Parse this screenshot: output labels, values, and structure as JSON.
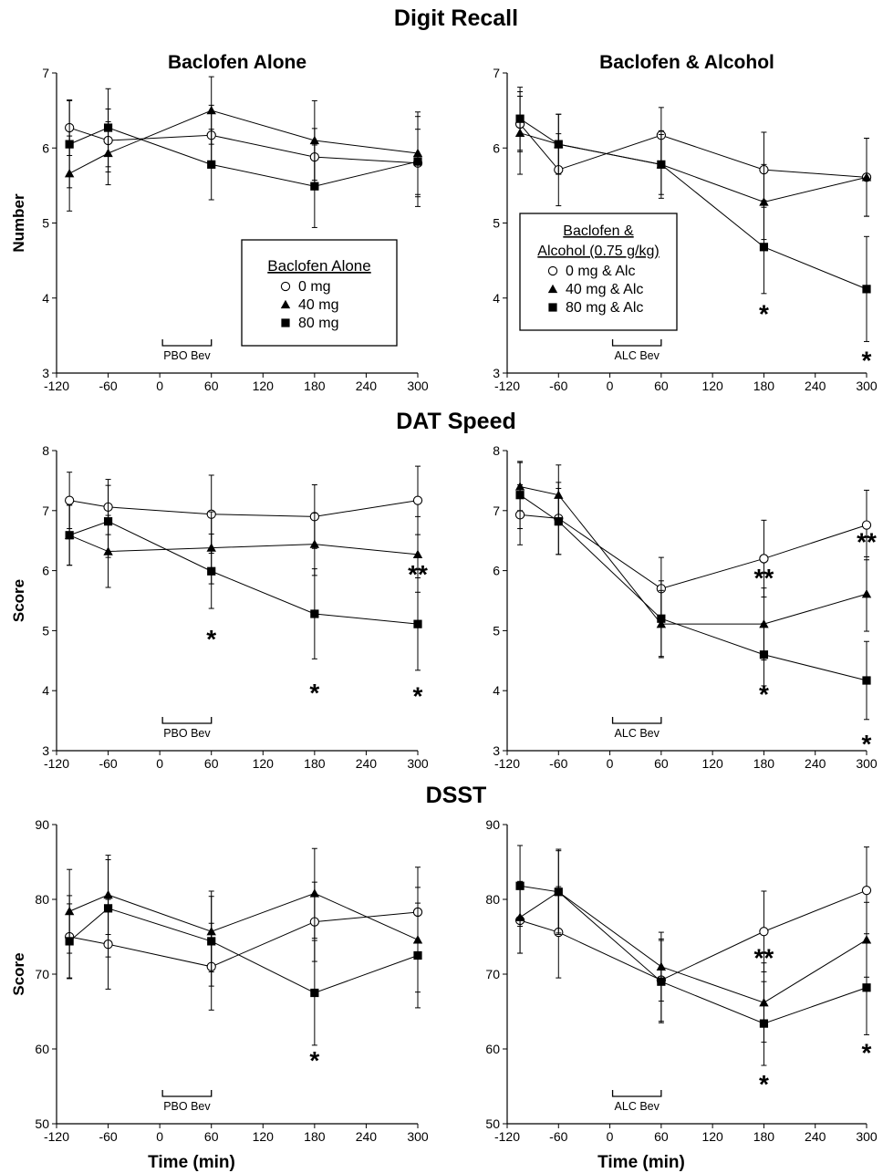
{
  "chart_data": [
    {
      "type": "line",
      "section": "Digit Recall",
      "panel": "left",
      "title": "Baclofen Alone",
      "xlabel": "",
      "ylabel": "Number",
      "xlim": [
        -120,
        300
      ],
      "ylim": [
        3,
        7
      ],
      "xticks": [
        -120,
        -60,
        0,
        60,
        120,
        180,
        240,
        300
      ],
      "yticks": [
        3,
        4,
        5,
        6,
        7
      ],
      "x": [
        -105,
        -60,
        60,
        180,
        300
      ],
      "bev_label": "PBO Bev",
      "legend": {
        "title": "Baclofen Alone",
        "position": "center-right",
        "boxed": true,
        "entries": [
          "0 mg",
          "40 mg",
          "80 mg"
        ]
      },
      "series": [
        {
          "name": "0 mg",
          "marker": "circle",
          "values": [
            6.27,
            6.1,
            6.17,
            5.88,
            5.8
          ],
          "err": [
            0.37,
            0.42,
            0.4,
            0.38,
            0.45
          ]
        },
        {
          "name": "40 mg",
          "marker": "triangle",
          "values": [
            5.66,
            5.93,
            6.5,
            6.1,
            5.93
          ],
          "err": [
            0.5,
            0.42,
            0.45,
            0.53,
            0.55
          ]
        },
        {
          "name": "80 mg",
          "marker": "square",
          "values": [
            6.05,
            6.27,
            5.78,
            5.49,
            5.82
          ],
          "err": [
            0.58,
            0.52,
            0.47,
            0.55,
            0.6
          ]
        }
      ],
      "annotations": []
    },
    {
      "type": "line",
      "section": "Digit Recall",
      "panel": "right",
      "title": "Baclofen & Alcohol",
      "xlabel": "",
      "ylabel": "",
      "xlim": [
        -120,
        300
      ],
      "ylim": [
        3,
        7
      ],
      "xticks": [
        -120,
        -60,
        0,
        60,
        120,
        180,
        240,
        300
      ],
      "yticks": [
        3,
        4,
        5,
        6,
        7
      ],
      "x": [
        -105,
        -60,
        60,
        180,
        300
      ],
      "bev_label": "ALC Bev",
      "legend": {
        "title": "Baclofen  & Alcohol (0.75 g/kg)",
        "position": "center-left",
        "boxed": true,
        "entries": [
          "0 mg & Alc",
          "40 mg & Alc",
          "80 mg & Alc"
        ]
      },
      "series": [
        {
          "name": "0 mg & Alc",
          "marker": "circle",
          "values": [
            6.32,
            5.71,
            6.17,
            5.71,
            5.61
          ],
          "err": [
            0.37,
            0.48,
            0.37,
            0.5,
            0.52
          ]
        },
        {
          "name": "40 mg & Alc",
          "marker": "triangle",
          "values": [
            6.2,
            6.05,
            5.78,
            5.28,
            5.61
          ],
          "err": [
            0.55,
            0.4,
            0.4,
            0.5,
            0.52
          ]
        },
        {
          "name": "80 mg & Alc",
          "marker": "square",
          "values": [
            6.39,
            6.05,
            5.78,
            4.68,
            4.12
          ],
          "err": [
            0.42,
            0.4,
            0.45,
            0.62,
            0.7
          ]
        }
      ],
      "annotations": [
        {
          "text": "*",
          "x": 180,
          "y": 3.82
        },
        {
          "text": "*",
          "x": 300,
          "y": 3.2
        }
      ]
    },
    {
      "type": "line",
      "section": "DAT Speed",
      "panel": "left",
      "title": "",
      "xlabel": "",
      "ylabel": "Score",
      "xlim": [
        -120,
        300
      ],
      "ylim": [
        3,
        8
      ],
      "xticks": [
        -120,
        -60,
        0,
        60,
        120,
        180,
        240,
        300
      ],
      "yticks": [
        3,
        4,
        5,
        6,
        7,
        8
      ],
      "x": [
        -105,
        -60,
        60,
        180,
        300
      ],
      "bev_label": "PBO Bev",
      "legend": null,
      "series": [
        {
          "name": "0 mg",
          "marker": "circle",
          "values": [
            7.17,
            7.06,
            6.94,
            6.9,
            7.17
          ],
          "err": [
            0.47,
            0.46,
            0.65,
            0.53,
            0.57
          ]
        },
        {
          "name": "40 mg",
          "marker": "triangle",
          "values": [
            6.59,
            6.32,
            6.38,
            6.44,
            6.27
          ],
          "err": [
            0.5,
            0.6,
            0.6,
            0.52,
            0.63
          ]
        },
        {
          "name": "80 mg",
          "marker": "square",
          "values": [
            6.59,
            6.82,
            5.99,
            5.28,
            5.11
          ],
          "err": [
            0.5,
            0.6,
            0.62,
            0.75,
            0.77
          ]
        }
      ],
      "annotations": [
        {
          "text": "**",
          "x": 300,
          "y": 5.98
        },
        {
          "text": "*",
          "x": 60,
          "y": 4.9
        },
        {
          "text": "*",
          "x": 180,
          "y": 4.0
        },
        {
          "text": "*",
          "x": 300,
          "y": 3.95
        }
      ]
    },
    {
      "type": "line",
      "section": "DAT Speed",
      "panel": "right",
      "title": "",
      "xlabel": "",
      "ylabel": "",
      "xlim": [
        -120,
        300
      ],
      "ylim": [
        3,
        8
      ],
      "xticks": [
        -120,
        -60,
        0,
        60,
        120,
        180,
        240,
        300
      ],
      "yticks": [
        3,
        4,
        5,
        6,
        7,
        8
      ],
      "x": [
        -105,
        -60,
        60,
        180,
        300
      ],
      "bev_label": "ALC Bev",
      "legend": null,
      "series": [
        {
          "name": "0 mg & Alc",
          "marker": "circle",
          "values": [
            6.93,
            6.87,
            5.7,
            6.2,
            6.76
          ],
          "err": [
            0.5,
            0.6,
            0.52,
            0.64,
            0.58
          ]
        },
        {
          "name": "40 mg & Alc",
          "marker": "triangle",
          "values": [
            7.4,
            7.26,
            5.11,
            5.11,
            5.61
          ],
          "err": [
            0.4,
            0.5,
            0.56,
            0.6,
            0.62
          ]
        },
        {
          "name": "80 mg & Alc",
          "marker": "square",
          "values": [
            7.26,
            6.82,
            5.2,
            4.6,
            4.17
          ],
          "err": [
            0.56,
            0.55,
            0.63,
            0.52,
            0.65
          ]
        }
      ],
      "annotations": [
        {
          "text": "**",
          "x": 300,
          "y": 6.52
        },
        {
          "text": "**",
          "x": 180,
          "y": 5.92
        },
        {
          "text": "*",
          "x": 180,
          "y": 3.98
        },
        {
          "text": "*",
          "x": 300,
          "y": 3.15
        }
      ]
    },
    {
      "type": "line",
      "section": "DSST",
      "panel": "left",
      "title": "",
      "xlabel": "Time (min)",
      "ylabel": "Score",
      "xlim": [
        -120,
        300
      ],
      "ylim": [
        50,
        90
      ],
      "xticks": [
        -120,
        -60,
        0,
        60,
        120,
        180,
        240,
        300
      ],
      "yticks": [
        50,
        60,
        70,
        80,
        90
      ],
      "x": [
        -105,
        -60,
        60,
        180,
        300
      ],
      "bev_label": "PBO Bev",
      "legend": null,
      "series": [
        {
          "name": "0 mg",
          "marker": "circle",
          "values": [
            75.0,
            74.0,
            71.0,
            77.0,
            78.3
          ],
          "err": [
            5.5,
            6.0,
            5.8,
            5.3,
            6.0
          ]
        },
        {
          "name": "40 mg",
          "marker": "triangle",
          "values": [
            78.4,
            80.6,
            75.7,
            80.8,
            74.6
          ],
          "err": [
            5.6,
            5.3,
            5.4,
            6.0,
            7.0
          ]
        },
        {
          "name": "80 mg",
          "marker": "square",
          "values": [
            74.4,
            78.8,
            74.4,
            67.5,
            72.5
          ],
          "err": [
            5.0,
            6.5,
            6.0,
            7.0,
            7.0
          ]
        }
      ],
      "annotations": [
        {
          "text": "*",
          "x": 180,
          "y": 58.8
        }
      ]
    },
    {
      "type": "line",
      "section": "DSST",
      "panel": "right",
      "title": "",
      "xlabel": "Time (min)",
      "ylabel": "",
      "xlim": [
        -120,
        300
      ],
      "ylim": [
        50,
        90
      ],
      "xticks": [
        -120,
        -60,
        0,
        60,
        120,
        180,
        240,
        300
      ],
      "yticks": [
        50,
        60,
        70,
        80,
        90
      ],
      "x": [
        -105,
        -60,
        60,
        180,
        300
      ],
      "bev_label": "ALC Bev",
      "legend": null,
      "series": [
        {
          "name": "0 mg & Alc",
          "marker": "circle",
          "values": [
            77.2,
            75.6,
            69.2,
            75.7,
            81.2
          ],
          "err": [
            4.4,
            6.1,
            5.5,
            5.4,
            5.8
          ]
        },
        {
          "name": "40 mg & Alc",
          "marker": "triangle",
          "values": [
            77.6,
            81.0,
            71.0,
            66.2,
            74.6
          ],
          "err": [
            4.8,
            5.5,
            4.6,
            5.3,
            5.0
          ]
        },
        {
          "name": "80 mg & Alc",
          "marker": "square",
          "values": [
            81.8,
            81.0,
            69.0,
            63.4,
            68.2
          ],
          "err": [
            5.4,
            5.7,
            5.5,
            5.6,
            6.3
          ]
        }
      ],
      "annotations": [
        {
          "text": "**",
          "x": 180,
          "y": 72.5
        },
        {
          "text": "*",
          "x": 180,
          "y": 55.6
        },
        {
          "text": "*",
          "x": 300,
          "y": 59.8
        }
      ]
    }
  ]
}
